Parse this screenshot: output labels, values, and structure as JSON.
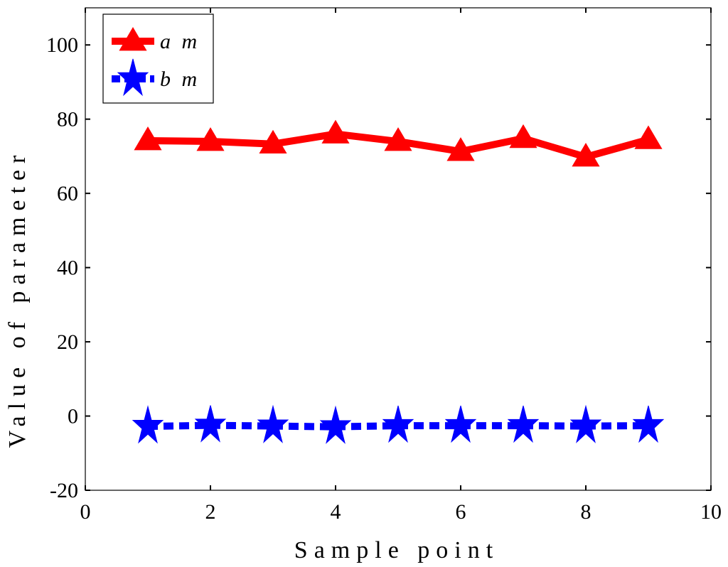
{
  "chart_data": {
    "type": "line",
    "title": "",
    "xlabel": "Sample point",
    "ylabel": "Value of parameter",
    "xlim": [
      0,
      10
    ],
    "ylim": [
      -20,
      110
    ],
    "xticks": [
      0,
      2,
      4,
      6,
      8,
      10
    ],
    "yticks": [
      -20,
      0,
      20,
      40,
      60,
      80,
      100
    ],
    "grid": false,
    "legend_position": "top-left",
    "x": [
      1,
      2,
      3,
      4,
      5,
      6,
      7,
      8,
      9
    ],
    "series": [
      {
        "name": "a m",
        "values": [
          74.2,
          74.0,
          73.3,
          76.0,
          74.0,
          71.3,
          74.8,
          69.8,
          74.5
        ],
        "color": "#ff0000",
        "line_style": "solid",
        "marker": "triangle-up"
      },
      {
        "name": "b m",
        "values": [
          -2.8,
          -2.5,
          -2.7,
          -2.9,
          -2.6,
          -2.6,
          -2.6,
          -2.7,
          -2.6
        ],
        "color": "#0000ff",
        "line_style": "dotted",
        "marker": "star"
      }
    ]
  }
}
